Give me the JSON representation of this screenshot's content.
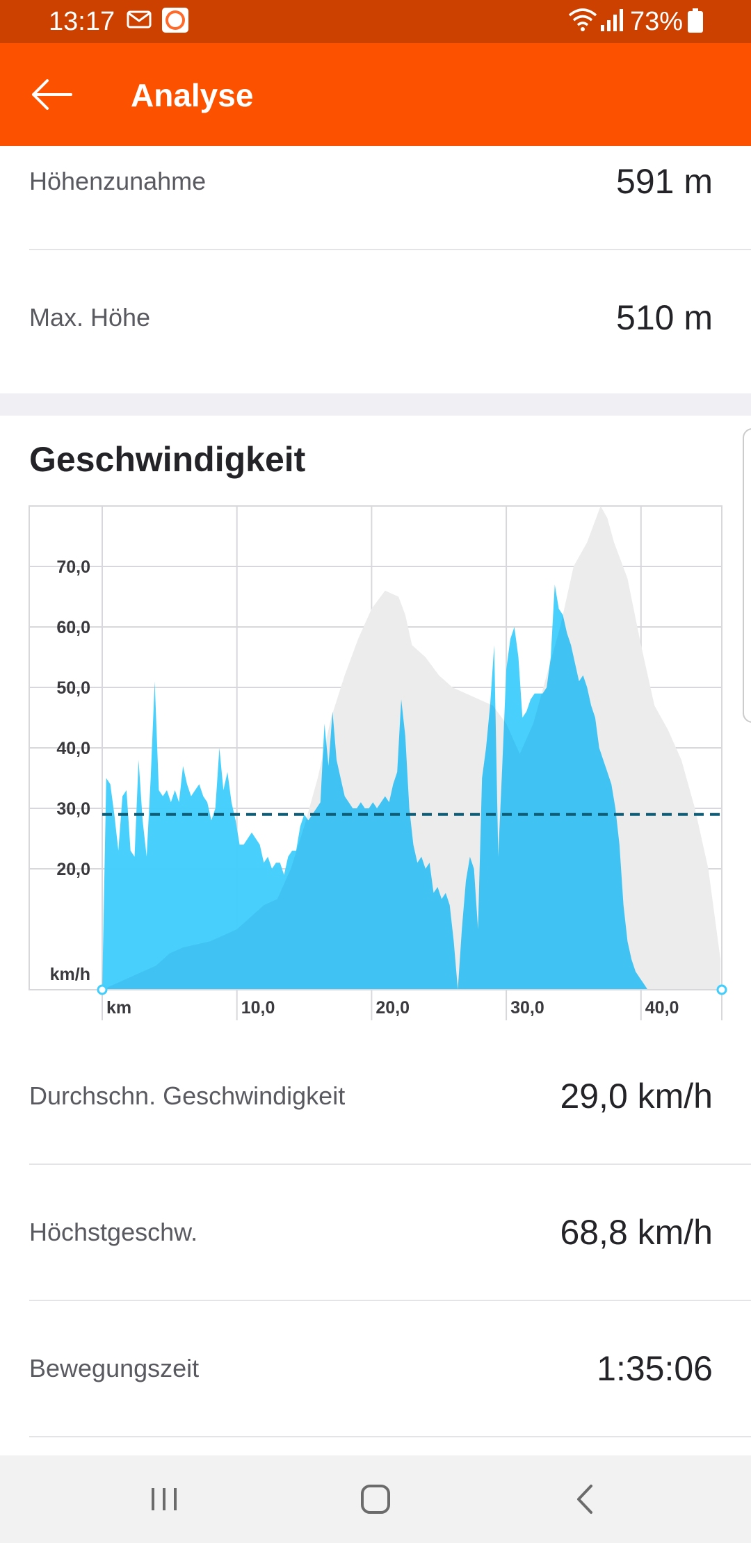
{
  "status_bar": {
    "time": "13:17",
    "battery": "73%",
    "icons": [
      "mail-icon",
      "lidl-app-icon",
      "wifi-icon",
      "signal-icon",
      "battery-icon"
    ]
  },
  "app_bar": {
    "title": "Analyse",
    "back_icon": "arrow-left-icon"
  },
  "elevation_stats": [
    {
      "label": "Höhenzunahme",
      "value": "591 m"
    },
    {
      "label": "Max. Höhe",
      "value": "510 m"
    }
  ],
  "speed_section": {
    "title": "Geschwindigkeit"
  },
  "chart_data": {
    "type": "area",
    "title": "Geschwindigkeit",
    "xlabel": "km",
    "ylabel": "km/h",
    "xlim": [
      0,
      46
    ],
    "ylim": [
      0,
      80
    ],
    "x_ticks": [
      0,
      10,
      20,
      30,
      40
    ],
    "x_tick_labels": [
      "km",
      "10,0",
      "20,0",
      "30,0",
      "40,0"
    ],
    "y_ticks": [
      20,
      30,
      40,
      50,
      60,
      70
    ],
    "y_tick_labels": [
      "20,0",
      "30,0",
      "40,0",
      "50,0",
      "60,0",
      "70,0"
    ],
    "y_unit_label": "km/h",
    "grid": true,
    "average_line": 29.0,
    "colors": {
      "speed": "#42cdfc",
      "elevation": "#ececec",
      "average": "#0e5c76",
      "grid": "#d8d8dc"
    },
    "series": [
      {
        "kind": "speed",
        "x": [
          0,
          0.3,
          0.6,
          0.9,
          1.2,
          1.5,
          1.8,
          2.1,
          2.4,
          2.7,
          3.0,
          3.3,
          3.6,
          3.9,
          4.2,
          4.5,
          4.8,
          5.1,
          5.4,
          5.7,
          6.0,
          6.3,
          6.6,
          6.9,
          7.2,
          7.5,
          7.8,
          8.1,
          8.4,
          8.7,
          9.0,
          9.3,
          9.6,
          9.9,
          10.2,
          10.5,
          10.8,
          11.1,
          11.4,
          11.7,
          12.0,
          12.3,
          12.6,
          12.9,
          13.2,
          13.5,
          13.8,
          14.1,
          14.4,
          14.7,
          15.0,
          15.3,
          15.6,
          15.9,
          16.2,
          16.5,
          16.8,
          17.1,
          17.4,
          17.7,
          18.0,
          18.3,
          18.6,
          18.9,
          19.2,
          19.5,
          19.8,
          20.1,
          20.4,
          20.7,
          21.0,
          21.3,
          21.6,
          21.9,
          22.2,
          22.5,
          22.8,
          23.1,
          23.4,
          23.7,
          24.0,
          24.3,
          24.6,
          24.9,
          25.2,
          25.5,
          25.8,
          26.1,
          26.4,
          26.7,
          27.0,
          27.3,
          27.6,
          27.9,
          28.2,
          28.5,
          28.8,
          29.1,
          29.4,
          29.7,
          30.0,
          30.3,
          30.6,
          30.9,
          31.2,
          31.5,
          31.8,
          32.1,
          32.4,
          32.7,
          33.0,
          33.3,
          33.6,
          33.9,
          34.2,
          34.5,
          34.8,
          35.1,
          35.4,
          35.7,
          36.0,
          36.3,
          36.6,
          36.9,
          37.2,
          37.5,
          37.8,
          38.1,
          38.4,
          38.7,
          39.0,
          39.3,
          39.6,
          39.9,
          40.2,
          40.5,
          40.8,
          41.1,
          41.4,
          41.7,
          42.0,
          42.3,
          42.6,
          42.9,
          43.2,
          43.5,
          43.8,
          44.1,
          44.4,
          44.7,
          45.0,
          45.3,
          45.6,
          45.9
        ],
        "values": [
          0,
          35,
          34,
          29,
          23,
          32,
          33,
          23,
          22,
          38,
          28,
          22,
          35,
          51,
          33,
          32,
          33,
          31,
          33,
          31,
          37,
          34,
          32,
          33,
          34,
          32,
          31,
          28,
          30,
          40,
          33,
          36,
          31,
          28,
          24,
          24,
          25,
          26,
          25,
          24,
          21,
          22,
          20,
          21,
          21,
          19,
          22,
          23,
          23,
          27,
          29,
          28,
          29,
          30,
          31,
          44,
          37,
          46,
          38,
          35,
          32,
          31,
          30,
          30,
          31,
          30,
          30,
          31,
          30,
          31,
          32,
          31,
          34,
          36,
          48,
          42,
          30,
          24,
          21,
          22,
          20,
          21,
          16,
          17,
          15,
          16,
          14,
          8,
          0,
          10,
          18,
          22,
          20,
          10,
          35,
          40,
          47,
          57,
          22,
          37,
          53,
          58,
          60,
          55,
          45,
          46,
          48,
          49,
          49,
          49,
          50,
          55,
          67,
          63,
          62,
          59,
          57,
          54,
          51,
          52,
          50,
          47,
          45,
          40,
          38,
          36,
          34,
          30,
          24,
          14,
          8,
          5,
          3,
          2,
          1,
          0,
          0,
          0,
          0,
          0,
          0,
          0,
          0,
          0,
          0,
          0,
          0,
          0,
          0,
          0,
          0,
          0,
          0,
          0
        ]
      },
      {
        "kind": "elevation",
        "x": [
          0,
          2,
          4,
          5,
          6,
          8,
          9,
          10,
          11,
          12,
          13,
          14,
          15,
          16,
          17,
          18,
          19,
          20,
          21,
          22,
          22.5,
          23,
          24,
          25,
          26,
          27,
          28,
          29,
          30,
          31,
          32,
          33,
          34,
          35,
          36,
          36.5,
          37,
          37.5,
          38,
          39,
          40,
          41,
          42,
          43,
          44,
          45,
          45.9
        ],
        "values": [
          0,
          2,
          4,
          6,
          7,
          8,
          9,
          10,
          12,
          14,
          15,
          20,
          27,
          35,
          45,
          52,
          58,
          63,
          66,
          65,
          62,
          57,
          55,
          52,
          50,
          49,
          48,
          47,
          44,
          39,
          44,
          52,
          60,
          70,
          74,
          77,
          80,
          78,
          74,
          68,
          57,
          47,
          43,
          38,
          30,
          20,
          5
        ]
      }
    ]
  },
  "speed_stats": [
    {
      "label": "Durchschn. Geschwindigkeit",
      "value": "29,0 km/h"
    },
    {
      "label": "Höchstgeschw.",
      "value": "68,8 km/h"
    },
    {
      "label": "Bewegungszeit",
      "value": "1:35:06"
    }
  ],
  "nav_bar": {
    "icons": [
      "recents-icon",
      "home-icon",
      "back-icon"
    ]
  }
}
